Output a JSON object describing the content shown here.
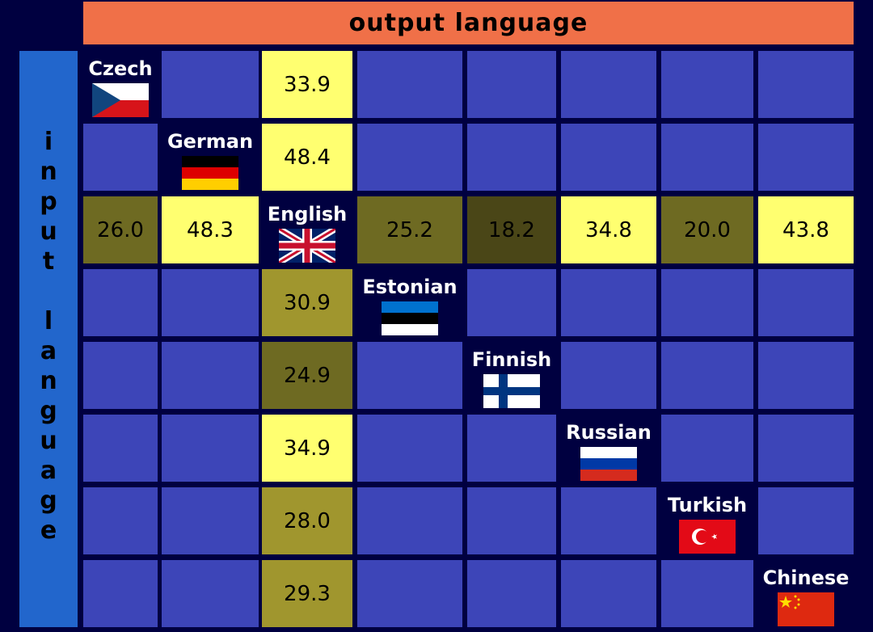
{
  "output_axis_label": "output language",
  "input_axis_label": "input language",
  "colors": {
    "background": "#000040",
    "empty_cell": "#3d45b8",
    "output_header": "#f07048",
    "input_header": "#2266cc",
    "score_high": "#ffff70",
    "score_mid": "#a0962e",
    "score_low": "#6e6a22",
    "score_lowest": "#4a4617"
  },
  "chart_data": {
    "type": "heatmap",
    "xlabel": "output language",
    "ylabel": "input language",
    "languages": [
      {
        "name": "Czech",
        "flag": "czech-flag"
      },
      {
        "name": "German",
        "flag": "german-flag"
      },
      {
        "name": "English",
        "flag": "uk-flag"
      },
      {
        "name": "Estonian",
        "flag": "estonian-flag"
      },
      {
        "name": "Finnish",
        "flag": "finnish-flag"
      },
      {
        "name": "Russian",
        "flag": "russian-flag"
      },
      {
        "name": "Turkish",
        "flag": "turkish-flag"
      },
      {
        "name": "Chinese",
        "flag": "chinese-flag"
      }
    ],
    "values": [
      [
        null,
        null,
        "33.9",
        null,
        null,
        null,
        null,
        null
      ],
      [
        null,
        null,
        "48.4",
        null,
        null,
        null,
        null,
        null
      ],
      [
        "26.0",
        "48.3",
        null,
        "25.2",
        "18.2",
        "34.8",
        "20.0",
        "43.8"
      ],
      [
        null,
        null,
        "30.9",
        null,
        null,
        null,
        null,
        null
      ],
      [
        null,
        null,
        "24.9",
        null,
        null,
        null,
        null,
        null
      ],
      [
        null,
        null,
        "34.9",
        null,
        null,
        null,
        null,
        null
      ],
      [
        null,
        null,
        "28.0",
        null,
        null,
        null,
        null,
        null
      ],
      [
        null,
        null,
        "29.3",
        null,
        null,
        null,
        null,
        null
      ]
    ]
  }
}
